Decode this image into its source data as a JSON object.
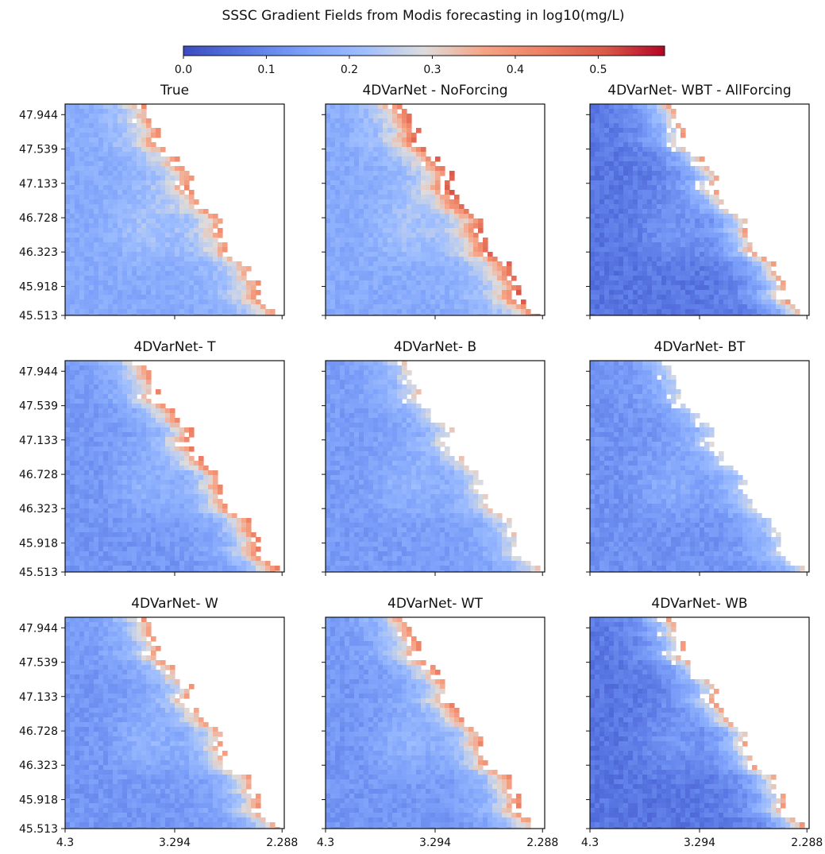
{
  "chart_data": {
    "type": "heatmap",
    "title": "SSSC Gradient Fields from Modis forecasting in log10(mg/L)",
    "colorbar": {
      "colormap": "coolwarm",
      "range": [
        0.0,
        0.58
      ],
      "ticks": [
        "0.0",
        "0.1",
        "0.2",
        "0.3",
        "0.4",
        "0.5"
      ],
      "placement": "top"
    },
    "x_ticks": [
      "4.3",
      "3.294",
      "2.288"
    ],
    "y_ticks": [
      "47.944",
      "47.539",
      "47.133",
      "46.728",
      "46.323",
      "45.918",
      "45.513"
    ],
    "grid": false,
    "panels": [
      {
        "title": "True",
        "offshore_level": 0.17,
        "coastal_level": 0.43
      },
      {
        "title": "4DVarNet - NoForcing",
        "offshore_level": 0.17,
        "coastal_level": 0.52
      },
      {
        "title": "4DVarNet- WBT - AllForcing",
        "offshore_level": 0.07,
        "coastal_level": 0.4
      },
      {
        "title": "4DVarNet- T",
        "offshore_level": 0.13,
        "coastal_level": 0.46
      },
      {
        "title": "4DVarNet- B",
        "offshore_level": 0.14,
        "coastal_level": 0.34
      },
      {
        "title": "4DVarNet- BT",
        "offshore_level": 0.12,
        "coastal_level": 0.31
      },
      {
        "title": "4DVarNet- W",
        "offshore_level": 0.13,
        "coastal_level": 0.41
      },
      {
        "title": "4DVarNet- WT",
        "offshore_level": 0.13,
        "coastal_level": 0.45
      },
      {
        "title": "4DVarNet- WB",
        "offshore_level": 0.07,
        "coastal_level": 0.4
      }
    ]
  }
}
